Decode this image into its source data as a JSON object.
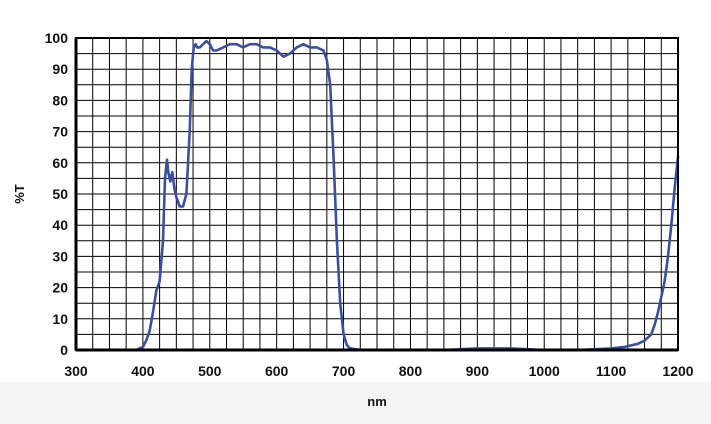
{
  "chart_data": {
    "type": "line",
    "title": "",
    "xlabel": "nm",
    "ylabel": "%T",
    "xlim": [
      300,
      1200
    ],
    "ylim": [
      0,
      100
    ],
    "grid": true,
    "x_ticks": [
      300,
      400,
      500,
      600,
      700,
      800,
      900,
      1000,
      1100,
      1200
    ],
    "y_ticks": [
      0,
      10,
      20,
      30,
      40,
      50,
      60,
      70,
      80,
      90,
      100
    ],
    "colors": {
      "line": "#3a4fa0",
      "grid": "#000000",
      "frame": "#000000"
    },
    "series": [
      {
        "x": [
          300,
          390,
          395,
          400,
          405,
          410,
          415,
          420,
          425,
          430,
          433,
          436,
          438,
          441,
          444,
          447,
          450,
          455,
          460,
          465,
          470,
          473,
          476,
          479,
          481,
          485,
          490,
          495,
          500,
          505,
          510,
          520,
          530,
          540,
          550,
          560,
          570,
          580,
          590,
          600,
          610,
          620,
          630,
          640,
          650,
          660,
          670,
          675,
          680,
          685,
          690,
          695,
          700,
          705,
          710,
          720,
          730,
          750,
          800,
          850,
          900,
          950,
          1000,
          1050,
          1100,
          1120,
          1140,
          1150,
          1160,
          1165,
          1170,
          1175,
          1180,
          1185,
          1190,
          1195,
          1200
        ],
        "y": [
          0,
          0,
          0.5,
          1,
          3,
          6,
          12,
          19,
          22,
          35,
          55,
          61,
          57,
          54,
          57,
          52,
          49,
          46,
          46,
          50,
          70,
          90,
          97,
          98,
          97,
          97,
          98,
          99,
          98,
          96,
          96,
          97,
          98,
          98,
          97,
          98,
          98,
          97,
          97,
          96,
          94,
          95,
          97,
          98,
          97,
          97,
          96,
          93,
          85,
          62,
          35,
          15,
          5,
          1.5,
          0.5,
          0.2,
          0,
          0,
          0,
          0,
          0.5,
          0.5,
          0,
          0,
          0.5,
          1,
          2,
          3,
          5,
          8,
          12,
          17,
          22,
          30,
          40,
          52,
          62
        ]
      }
    ]
  }
}
